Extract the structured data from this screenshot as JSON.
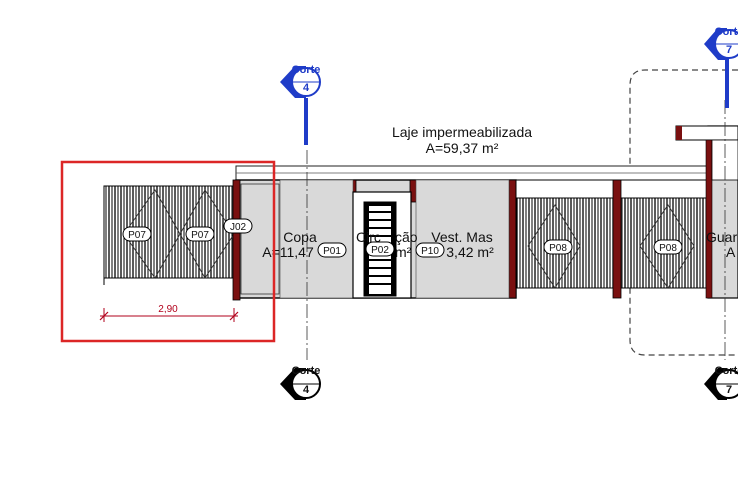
{
  "labels": {
    "roof_title": "Laje impermeabilizada",
    "roof_area": "A=59,37 m²",
    "copa_title": "Copa",
    "copa_area": "A=11,47",
    "circ_title": "Circ",
    "circ_title_end": "ção",
    "circ_area_fragment": "m²",
    "vest_title": "Vest. Mas",
    "vest_area": "3,42 m²",
    "guard_title_fragment": "Guar",
    "guard_area_fragment": "A"
  },
  "tags": {
    "p07_left": "P07",
    "p07_right": "P07",
    "j02": "J02",
    "p01": "P01",
    "p02": "P02",
    "p10": "P10",
    "p08_left": "P08",
    "p08_right": "P08"
  },
  "section_markers": {
    "corte_label": "Corte",
    "corte4_num": "4",
    "corte7_num": "7"
  },
  "dimension": {
    "value": "2,90"
  },
  "colors": {
    "selection_box": "#dc2626",
    "section_marker": "#1f3cc8",
    "wall_dark": "#7a1010",
    "wall_fill": "#d8d8d8",
    "dimension": "#b2001b"
  }
}
